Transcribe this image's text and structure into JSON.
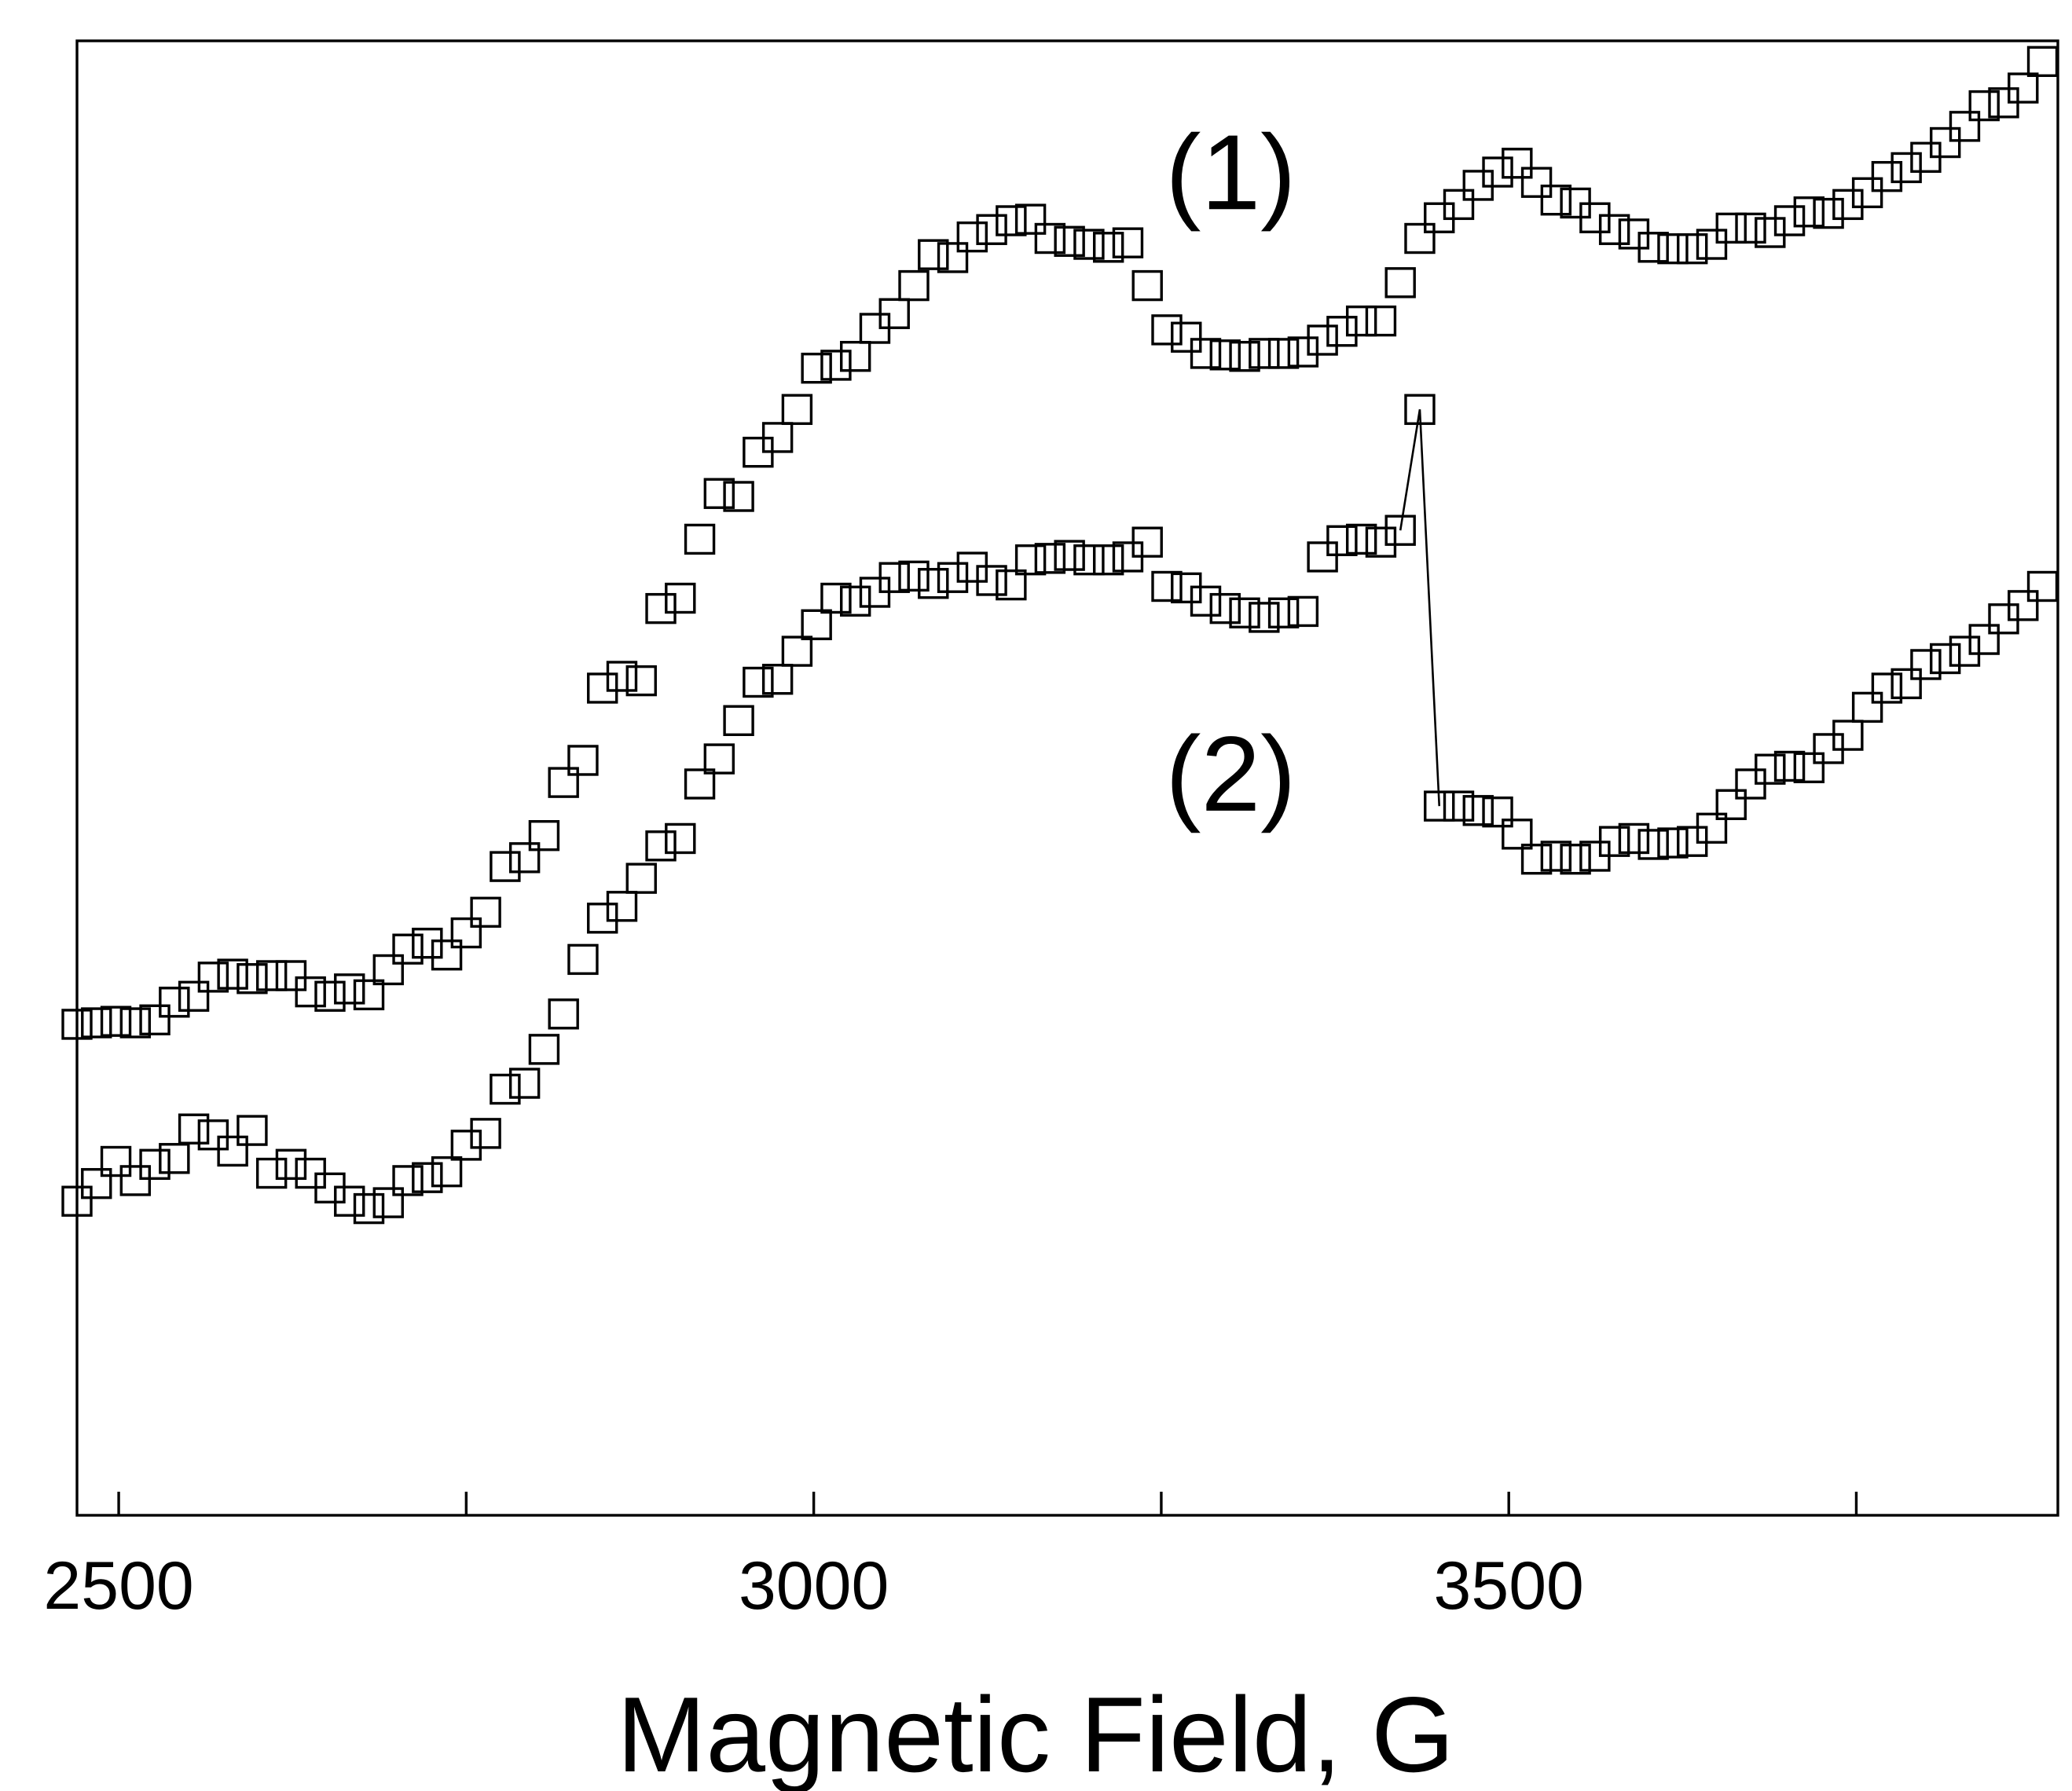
{
  "chart_data": {
    "type": "scatter",
    "title": "",
    "xlabel": "Magnetic Field, G",
    "ylabel": "",
    "xlim": [
      2470,
      3895
    ],
    "ylim": [
      0,
      1000
    ],
    "y_axis": "no ticks, arbitrary units",
    "x_major_ticks": [
      2500,
      3000,
      3500
    ],
    "x_tick_labels": [
      "2500",
      "3000",
      "3500"
    ],
    "x_minor_ticks": [
      2750,
      3250,
      3750
    ],
    "grid": false,
    "legend": "none",
    "marker": "open-square",
    "annotations": [
      {
        "text": "(1)",
        "x": 3300,
        "y": 905
      },
      {
        "text": "(2)",
        "x": 3300,
        "y": 497
      }
    ],
    "series": [
      {
        "name": "(1)",
        "x": [
          2470,
          2484,
          2498,
          2512,
          2526,
          2540,
          2554,
          2568,
          2582,
          2596,
          2610,
          2624,
          2638,
          2652,
          2666,
          2680,
          2694,
          2708,
          2722,
          2736,
          2750,
          2764,
          2778,
          2792,
          2806,
          2820,
          2834,
          2848,
          2862,
          2876,
          2890,
          2904,
          2918,
          2932,
          2946,
          2960,
          2974,
          2988,
          3002,
          3016,
          3030,
          3044,
          3058,
          3072,
          3086,
          3100,
          3114,
          3128,
          3142,
          3156,
          3170,
          3184,
          3198,
          3212,
          3226,
          3240,
          3254,
          3268,
          3282,
          3296,
          3310,
          3324,
          3338,
          3352,
          3366,
          3380,
          3394,
          3408,
          3422,
          3436,
          3450,
          3464,
          3478,
          3492,
          3506,
          3520,
          3534,
          3548,
          3562,
          3576,
          3590,
          3604,
          3618,
          3632,
          3646,
          3660,
          3674,
          3688,
          3702,
          3716,
          3730,
          3744,
          3758,
          3772,
          3786,
          3800,
          3814,
          3828,
          3842,
          3856,
          3870,
          3884
        ],
        "y": [
          333,
          334,
          335,
          334,
          336,
          348,
          352,
          365,
          367,
          364,
          366,
          366,
          355,
          352,
          357,
          353,
          370,
          384,
          388,
          380,
          395,
          409,
          440,
          446,
          461,
          497,
          512,
          561,
          569,
          566,
          615,
          622,
          662,
          693,
          691,
          721,
          731,
          750,
          778,
          780,
          786,
          805,
          815,
          834,
          855,
          853,
          867,
          872,
          878,
          879,
          866,
          864,
          862,
          860,
          863,
          834,
          804,
          799,
          788,
          787,
          786,
          788,
          788,
          789,
          797,
          803,
          810,
          810,
          836,
          866,
          880,
          889,
          902,
          911,
          917,
          904,
          892,
          890,
          880,
          872,
          869,
          860,
          859,
          859,
          862,
          873,
          873,
          870,
          878,
          884,
          883,
          889,
          897,
          908,
          914,
          921,
          931,
          942,
          956,
          958,
          968,
          986
        ]
      },
      {
        "name": "(2)",
        "x": [
          2470,
          2484,
          2498,
          2512,
          2526,
          2540,
          2554,
          2568,
          2582,
          2596,
          2610,
          2624,
          2638,
          2652,
          2666,
          2680,
          2694,
          2708,
          2722,
          2736,
          2750,
          2764,
          2778,
          2792,
          2806,
          2820,
          2834,
          2848,
          2862,
          2876,
          2890,
          2904,
          2918,
          2932,
          2946,
          2960,
          2974,
          2988,
          3002,
          3016,
          3030,
          3044,
          3058,
          3072,
          3086,
          3100,
          3114,
          3128,
          3142,
          3156,
          3170,
          3184,
          3198,
          3212,
          3226,
          3240,
          3254,
          3268,
          3282,
          3296,
          3310,
          3324,
          3338,
          3352,
          3366,
          3380,
          3394,
          3408,
          3422,
          3436,
          3450,
          3464,
          3478,
          3492,
          3506,
          3520,
          3534,
          3548,
          3562,
          3576,
          3590,
          3604,
          3618,
          3632,
          3646,
          3660,
          3674,
          3688,
          3702,
          3716,
          3730,
          3744,
          3758,
          3772,
          3786,
          3800,
          3814,
          3828,
          3842,
          3856,
          3870,
          3884
        ],
        "y": [
          213,
          225,
          240,
          227,
          238,
          242,
          262,
          258,
          247,
          261,
          232,
          238,
          232,
          222,
          213,
          208,
          212,
          227,
          229,
          233,
          251,
          259,
          289,
          293,
          316,
          340,
          377,
          405,
          413,
          432,
          454,
          459,
          496,
          513,
          539,
          565,
          567,
          586,
          604,
          622,
          620,
          626,
          636,
          637,
          632,
          636,
          643,
          634,
          631,
          648,
          649,
          651,
          648,
          648,
          650,
          660,
          630,
          629,
          620,
          615,
          612,
          609,
          612,
          613,
          650,
          661,
          662,
          660,
          668,
          750,
          481,
          481,
          478,
          477,
          462,
          445,
          447,
          445,
          447,
          457,
          459,
          455,
          456,
          457,
          466,
          482,
          496,
          506,
          508,
          507,
          520,
          529,
          548,
          561,
          564,
          577,
          581,
          586,
          594,
          608,
          617,
          630
        ]
      }
    ]
  }
}
